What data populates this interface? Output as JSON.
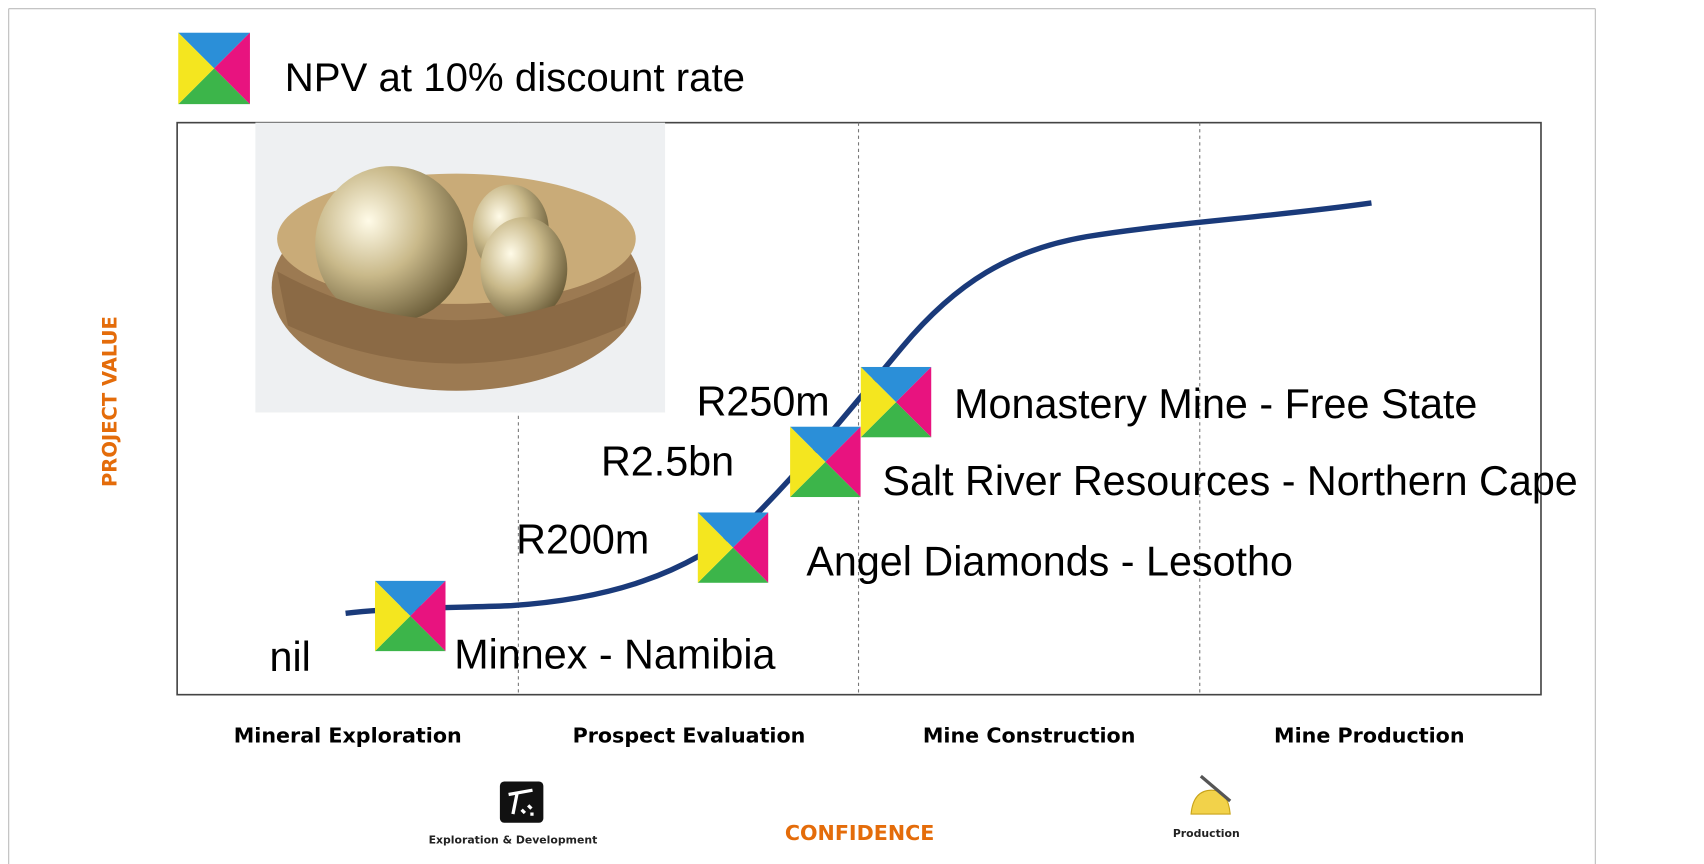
{
  "title": "NPV at 10% discount rate",
  "y_axis_label": "PROJECT VALUE",
  "x_axis_label": "CONFIDENCE",
  "stages": [
    "Mineral Exploration",
    "Prospect Evaluation",
    "Mine Construction",
    "Mine Production"
  ],
  "projects": [
    {
      "value": "nil",
      "name": "Minnex - Namibia"
    },
    {
      "value": "R200m",
      "name": "Angel Diamonds - Lesotho"
    },
    {
      "value": "R2.5bn",
      "name": "Salt River Resources - Northern Cape"
    },
    {
      "value": "R250m",
      "name": "Monastery Mine - Free State"
    }
  ],
  "icons": {
    "exploration": "Exploration & Development",
    "production": "Production"
  }
}
